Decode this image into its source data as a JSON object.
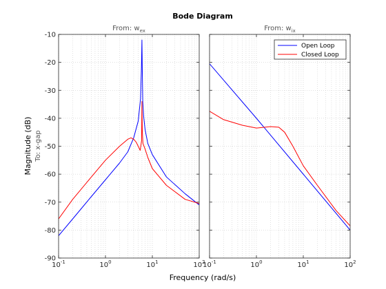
{
  "chart_data": {
    "type": "line",
    "title": "Bode Diagram",
    "xlabel": "Frequency  (rad/s)",
    "ylabel": "Magnitude (dB)",
    "output_label": "To: x-gap",
    "xscale": "log",
    "xlim": [
      0.1,
      100
    ],
    "ylim": [
      -90,
      -10
    ],
    "yticks": [
      "-10",
      "-20",
      "-30",
      "-40",
      "-50",
      "-60",
      "-70",
      "-80",
      "-90"
    ],
    "grid": true,
    "legend_position": "top-right",
    "legend": [
      "Open Loop",
      "Closed Loop"
    ],
    "colors": {
      "open_loop": "#0000ff",
      "closed_loop": "#ff0000"
    },
    "panels": [
      {
        "title": "From: w",
        "subscript": "ex",
        "series": [
          {
            "name": "Open Loop",
            "x": [
              0.1,
              0.2,
              0.5,
              1,
              2,
              3,
              4,
              5,
              5.6,
              5.85,
              6.0,
              6.1,
              6.25,
              6.5,
              7,
              8,
              10,
              20,
              50,
              100
            ],
            "y": [
              -82,
              -76,
              -68,
              -62,
              -56,
              -52,
              -47,
              -41,
              -33,
              -22,
              -12,
              -22,
              -34,
              -39,
              -44,
              -49,
              -53,
              -61,
              -67,
              -71
            ]
          },
          {
            "name": "Closed Loop",
            "x": [
              0.1,
              0.2,
              0.5,
              1,
              2,
              3,
              3.5,
              4,
              4.5,
              5,
              5.5,
              5.9,
              6.0,
              6.1,
              6.3,
              7,
              8,
              10,
              20,
              50,
              100
            ],
            "y": [
              -76,
              -69,
              -61,
              -55,
              -50,
              -47.5,
              -47,
              -47.5,
              -48.5,
              -50,
              -51.5,
              -48,
              -34,
              -44,
              -49,
              -51,
              -54,
              -58,
              -64,
              -69,
              -70.5
            ]
          }
        ]
      },
      {
        "title": "From: w",
        "subscript": "ix",
        "series": [
          {
            "name": "Open Loop",
            "x": [
              0.1,
              1,
              10,
              100
            ],
            "y": [
              -20.5,
              -40,
              -60,
              -80
            ]
          },
          {
            "name": "Closed Loop",
            "x": [
              0.1,
              0.2,
              0.5,
              1,
              1.5,
              2,
              3,
              4,
              6,
              10,
              20,
              50,
              100
            ],
            "y": [
              -37.5,
              -40.5,
              -42.5,
              -43.5,
              -43.2,
              -43,
              -43.2,
              -45,
              -50,
              -57,
              -64,
              -73,
              -78.5
            ]
          }
        ]
      }
    ]
  }
}
